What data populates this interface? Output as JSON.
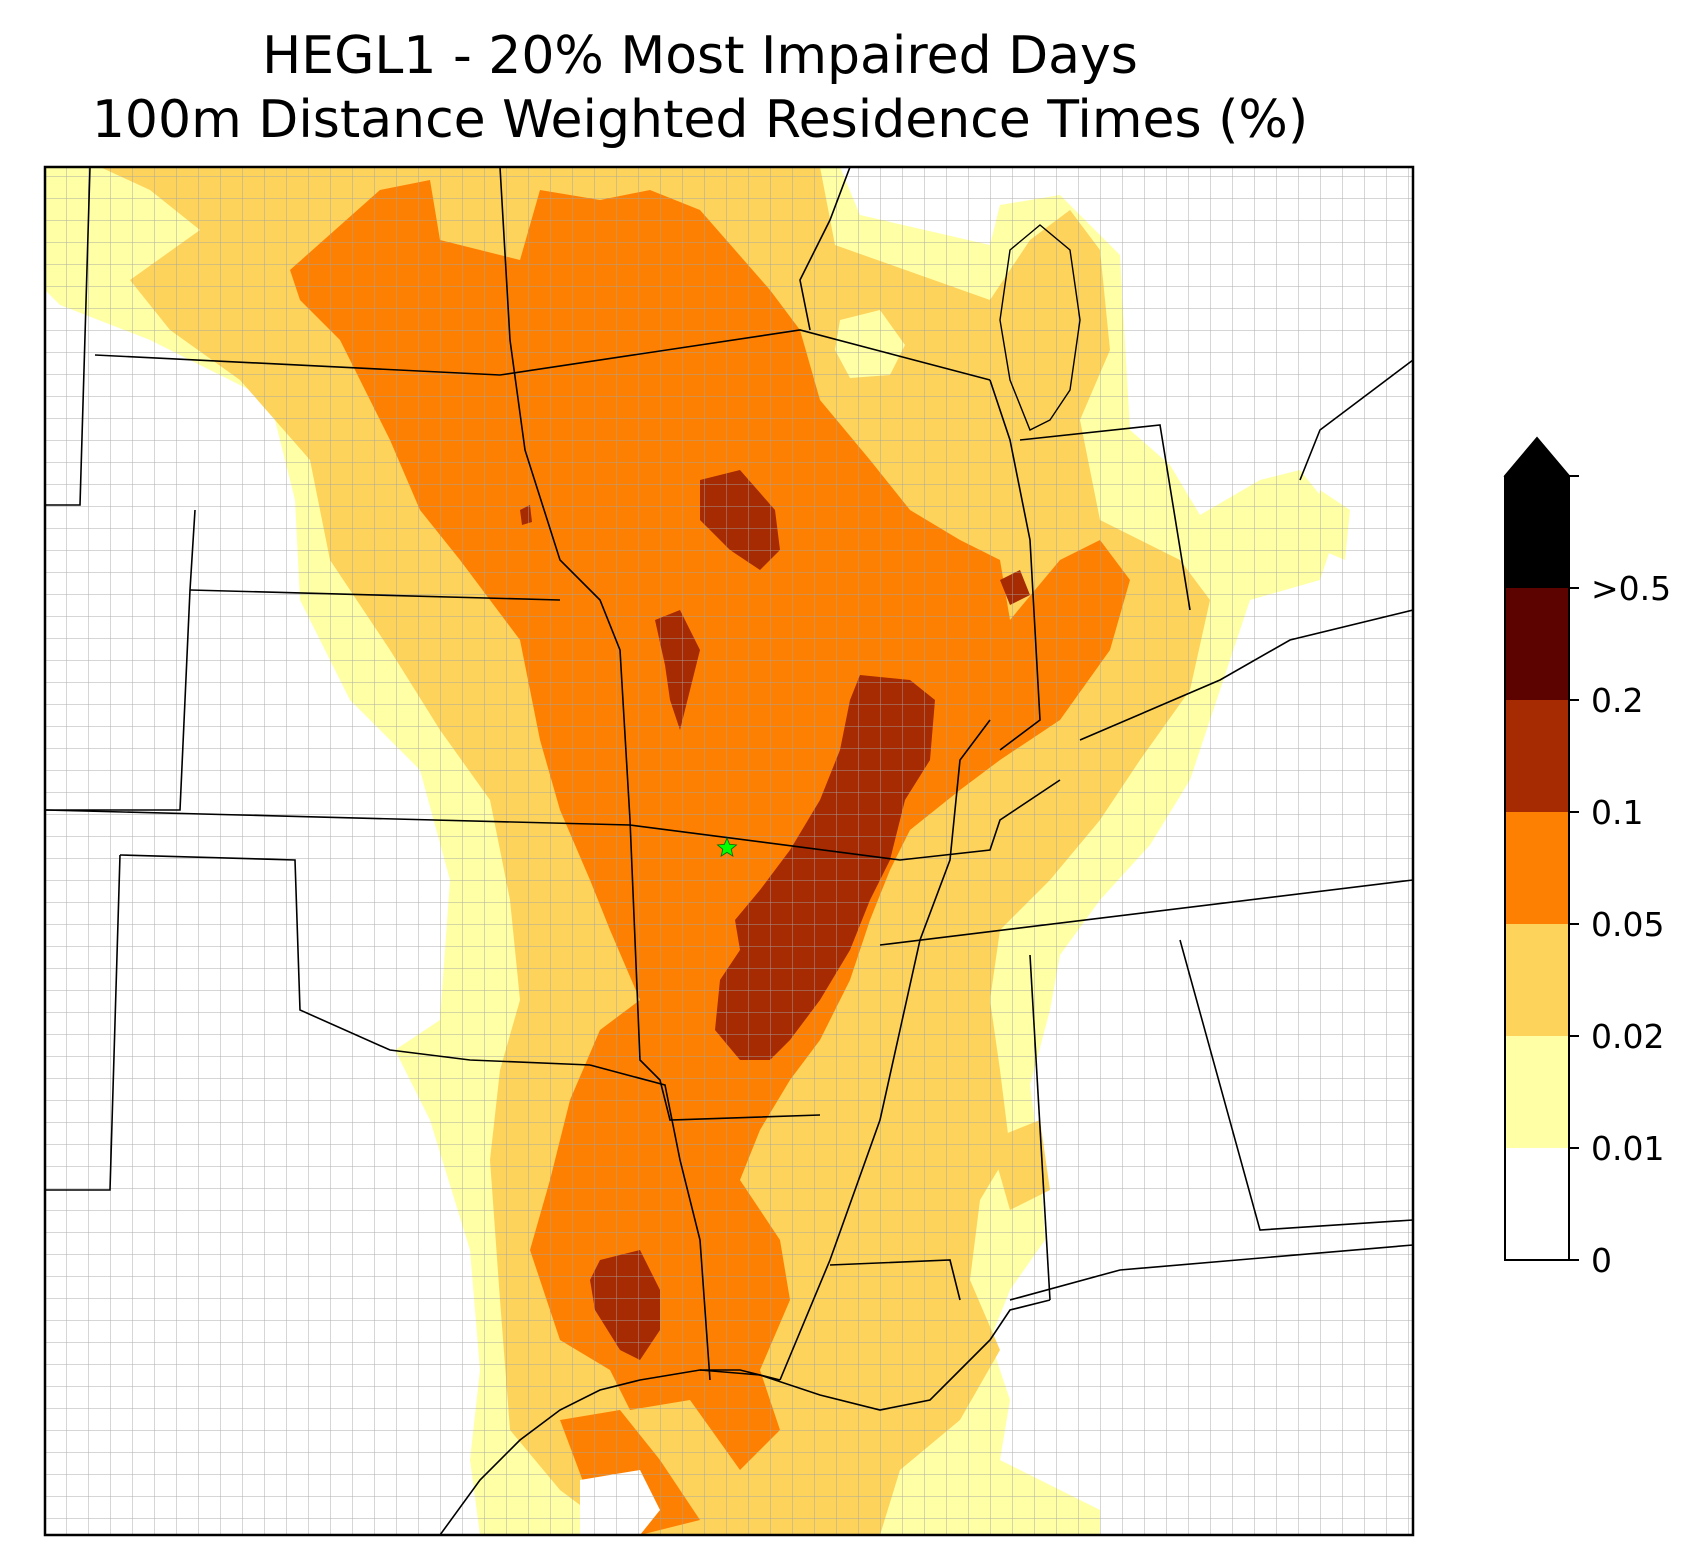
{
  "title": {
    "line1": "HEGL1 - 20% Most Impaired Days",
    "line2": "100m Distance Weighted Residence Times (%)"
  },
  "colorbar": {
    "extend": "max",
    "bins": [
      {
        "from": 0,
        "to": 0.01,
        "color": "#ffffff"
      },
      {
        "from": 0.01,
        "to": 0.02,
        "color": "#ffffa6"
      },
      {
        "from": 0.02,
        "to": 0.05,
        "color": "#fdd35c"
      },
      {
        "from": 0.05,
        "to": 0.1,
        "color": "#fe8002"
      },
      {
        "from": 0.1,
        "to": 0.2,
        "color": "#a62a02"
      },
      {
        "from": 0.2,
        "to": 0.5,
        "color": "#5c0300"
      }
    ],
    "over_color": "#000000",
    "tick_labels": [
      "0",
      "0.01",
      "0.02",
      "0.05",
      "0.1",
      "0.2",
      ">0.5"
    ]
  },
  "map": {
    "marker": {
      "name": "receptor site",
      "shape": "star",
      "color": "#00ff00"
    },
    "boundaries": [
      "state",
      "county",
      "coastline"
    ]
  }
}
